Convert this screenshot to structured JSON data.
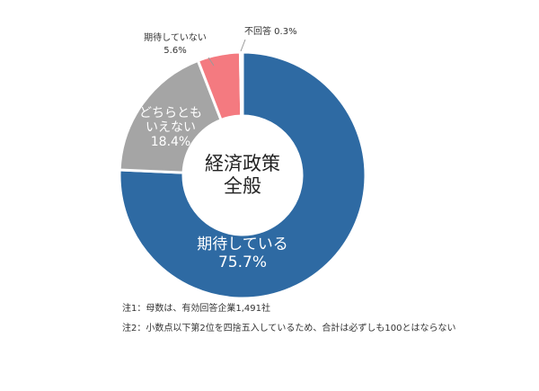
{
  "chart_data": {
    "type": "pie",
    "title": "経済政策\n全般",
    "categories": [
      "期待している",
      "どちらともいえない",
      "期待していない",
      "不回答"
    ],
    "values": [
      75.7,
      18.4,
      5.6,
      0.3
    ],
    "colors": [
      "#2e6aa3",
      "#a5a5a5",
      "#f47a80",
      "#f2f2f2"
    ],
    "labels": {
      "expect": [
        "期待している",
        "75.7%"
      ],
      "neutral": [
        "どちらとも",
        "いえない",
        "18.4%"
      ],
      "not_expect": [
        "期待していない",
        "5.6%"
      ],
      "no_answer": "不回答 0.3%"
    },
    "center_title": [
      "経済政策",
      "全般"
    ],
    "donut": true
  },
  "notes": [
    "注1：母数は、有効回答企業1,491社",
    "注2：小数点以下第2位を四捨五入しているため、合計は必ずしも100とはならない"
  ]
}
